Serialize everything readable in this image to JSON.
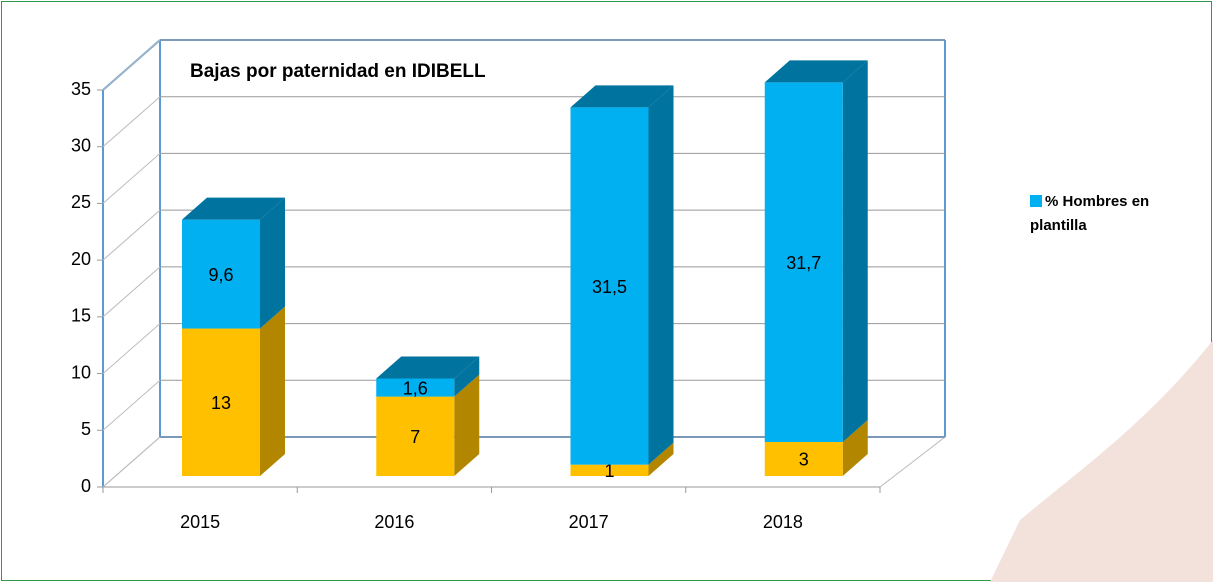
{
  "chart_data": {
    "type": "bar3d-stacked",
    "title": "Bajas por paternidad en IDIBELL",
    "categories": [
      "2015",
      "2016",
      "2017",
      "2018"
    ],
    "series": [
      {
        "color": "#ffc000",
        "side_color": "#b38600",
        "values": [
          13,
          7,
          1,
          3
        ]
      },
      {
        "name": "% Hombres en plantilla",
        "color": "#00b0f0",
        "side_color": "#00739e",
        "values": [
          9.6,
          1.6,
          31.5,
          31.7
        ],
        "value_labels": [
          "9,6",
          "1,6",
          "31,5",
          "31,7"
        ]
      }
    ],
    "ylim": [
      0,
      35
    ],
    "yticks": [
      0,
      5,
      10,
      15,
      20,
      25,
      30,
      35
    ],
    "grid": true,
    "legend": "right"
  }
}
